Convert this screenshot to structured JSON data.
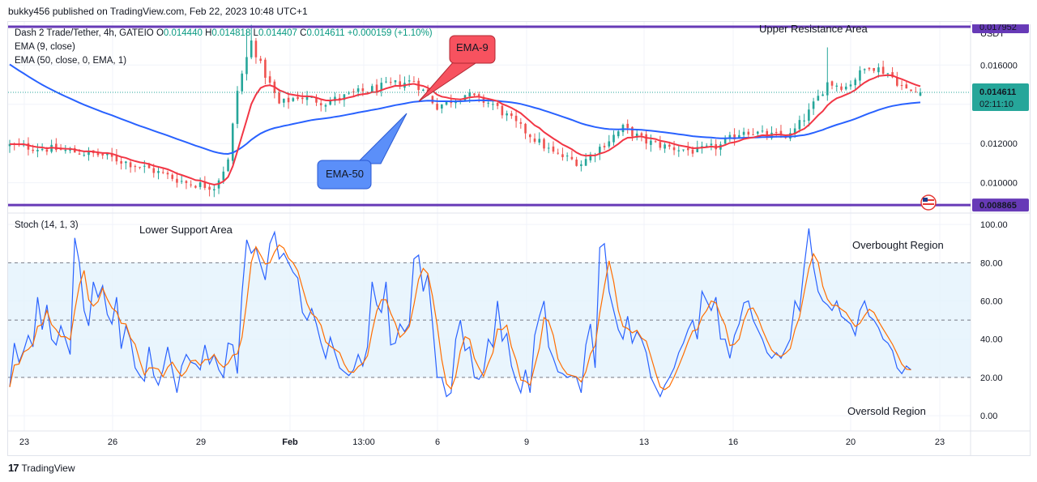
{
  "header": {
    "published": "bukky456 published on TradingView.com, Feb 22, 2023 10:48 UTC+1"
  },
  "legend": {
    "symbol": "Dash 2 Trade/Tether, 4h, GATEIO",
    "o_label": "O",
    "o": "0.014440",
    "h_label": "H",
    "h": "0.014818",
    "l_label": "L",
    "l": "0.014407",
    "c_label": "C",
    "c": "0.014611",
    "change": "+0.000159 (+1.10%)",
    "ema9": "EMA (9, close)",
    "ema50": "EMA (50, close, 0, EMA, 1)",
    "stoch": "Stoch (14, 1, 3)"
  },
  "footer": {
    "brand": "TradingView",
    "logo": "17"
  },
  "colors": {
    "up": "#26a69a",
    "down": "#ef5350",
    "ema9": "#f23645",
    "ema50": "#2962ff",
    "level_line": "#673ab7",
    "stoch_k": "#2962ff",
    "stoch_d": "#ff6d00",
    "band": "#e3f2fd",
    "price_label_bg": "#26a69a",
    "support_label_bg": "#673ab7"
  },
  "chart_data": [
    {
      "type": "candlestick",
      "title": "Dash 2 Trade/Tether, 4h, GATEIO",
      "currency": "USDT",
      "x_tick_labels": [
        "23",
        "26",
        "29",
        "Feb",
        "13:00",
        "6",
        "9",
        "13",
        "16",
        "20",
        "23"
      ],
      "y_tick_labels": [
        "0.016000",
        "0.014000",
        "0.012000",
        "0.010000"
      ],
      "ylim": [
        0.0085,
        0.0182
      ],
      "last_price": "0.014611",
      "countdown": "02:11:10",
      "resistance": {
        "value": 0.01795,
        "label": "0.017952",
        "text": "Upper Resistance Area"
      },
      "support": {
        "value": 0.008865,
        "label": "0.008865"
      },
      "series": [
        {
          "name": "Price",
          "anchors": [
            {
              "i": 0,
              "v": 0.0119
            },
            {
              "i": 10,
              "v": 0.0117
            },
            {
              "i": 20,
              "v": 0.0114
            },
            {
              "i": 30,
              "v": 0.0107
            },
            {
              "i": 38,
              "v": 0.01
            },
            {
              "i": 44,
              "v": 0.0098
            },
            {
              "i": 47,
              "v": 0.0111
            },
            {
              "i": 49,
              "v": 0.0147
            },
            {
              "i": 52,
              "v": 0.0172
            },
            {
              "i": 54,
              "v": 0.016
            },
            {
              "i": 58,
              "v": 0.014
            },
            {
              "i": 62,
              "v": 0.0144
            },
            {
              "i": 68,
              "v": 0.0141
            },
            {
              "i": 75,
              "v": 0.0146
            },
            {
              "i": 82,
              "v": 0.015
            },
            {
              "i": 87,
              "v": 0.0152
            },
            {
              "i": 92,
              "v": 0.0139
            },
            {
              "i": 98,
              "v": 0.0145
            },
            {
              "i": 104,
              "v": 0.014
            },
            {
              "i": 110,
              "v": 0.0128
            },
            {
              "i": 117,
              "v": 0.0115
            },
            {
              "i": 123,
              "v": 0.011
            },
            {
              "i": 127,
              "v": 0.0118
            },
            {
              "i": 132,
              "v": 0.0128
            },
            {
              "i": 137,
              "v": 0.0121
            },
            {
              "i": 142,
              "v": 0.0118
            },
            {
              "i": 148,
              "v": 0.0116
            },
            {
              "i": 153,
              "v": 0.0119
            },
            {
              "i": 158,
              "v": 0.0127
            },
            {
              "i": 163,
              "v": 0.0124
            },
            {
              "i": 168,
              "v": 0.0124
            },
            {
              "i": 172,
              "v": 0.0136
            },
            {
              "i": 176,
              "v": 0.0151
            },
            {
              "i": 180,
              "v": 0.0149
            },
            {
              "i": 185,
              "v": 0.016
            },
            {
              "i": 189,
              "v": 0.0156
            },
            {
              "i": 193,
              "v": 0.0147
            },
            {
              "i": 196,
              "v": 0.0146
            }
          ]
        },
        {
          "name": "EMA-9",
          "label_text": "EMA-9"
        },
        {
          "name": "EMA-50",
          "label_text": "EMA-50"
        }
      ]
    },
    {
      "type": "line",
      "title": "Stoch (14, 1, 3)",
      "y_tick_labels": [
        "100.00",
        "80.00",
        "60.00",
        "40.00",
        "20.00",
        "0.00"
      ],
      "ylim": [
        -8,
        106
      ],
      "band": [
        20,
        80
      ],
      "midline": 50,
      "annotations": [
        "Lower Support Area",
        "Overbought Region",
        "Oversold Region"
      ],
      "k": [
        15,
        38,
        28,
        34,
        42,
        36,
        62,
        45,
        58,
        40,
        37,
        47,
        40,
        32,
        93,
        80,
        55,
        47,
        70,
        62,
        68,
        53,
        48,
        62,
        35,
        47,
        40,
        25,
        21,
        18,
        36,
        21,
        16,
        24,
        36,
        24,
        12,
        26,
        32,
        28,
        27,
        24,
        37,
        27,
        32,
        24,
        20,
        38,
        37,
        22,
        64,
        92,
        85,
        88,
        79,
        71,
        90,
        96,
        82,
        85,
        80,
        75,
        72,
        54,
        50,
        56,
        48,
        38,
        30,
        41,
        33,
        25,
        23,
        21,
        24,
        32,
        26,
        36,
        70,
        58,
        54,
        70,
        37,
        38,
        48,
        44,
        48,
        82,
        84,
        65,
        74,
        48,
        20,
        20,
        10,
        12,
        40,
        50,
        34,
        36,
        20,
        19,
        23,
        40,
        36,
        60,
        39,
        43,
        26,
        18,
        12,
        24,
        12,
        42,
        52,
        60,
        36,
        30,
        23,
        22,
        20,
        21,
        20,
        12,
        37,
        48,
        25,
        88,
        90,
        65,
        55,
        45,
        40,
        52,
        38,
        44,
        40,
        33,
        20,
        15,
        10,
        16,
        20,
        25,
        33,
        38,
        45,
        50,
        40,
        65,
        60,
        55,
        62,
        40,
        40,
        30,
        42,
        48,
        59,
        60,
        50,
        45,
        40,
        33,
        30,
        33,
        30,
        35,
        40,
        60,
        55,
        78,
        98,
        78,
        65,
        60,
        58,
        55,
        60,
        52,
        50,
        48,
        42,
        55,
        60,
        52,
        50,
        46,
        40,
        38,
        34,
        25,
        22,
        26,
        24
      ]
    }
  ]
}
